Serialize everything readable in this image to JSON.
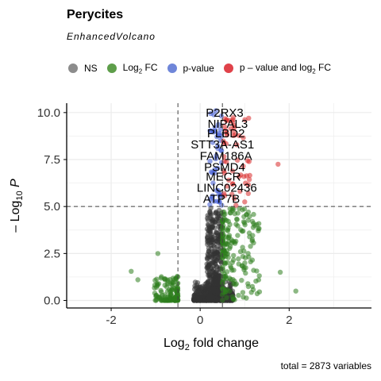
{
  "chart_data": {
    "type": "scatter",
    "title": "Perycites",
    "subtitle": "EnhancedVolcano",
    "xlabel_main": "Log",
    "xlabel_sub": "2",
    "xlabel_tail": " fold change",
    "ylabel_prefix": "– Log",
    "ylabel_sub": "10",
    "ylabel_tail": " P",
    "caption": "total = 2873 variables",
    "xlim": [
      -3,
      3.85
    ],
    "ylim": [
      -0.4,
      10.5
    ],
    "x_ticks": [
      -2,
      0,
      2
    ],
    "x_tick_labels": [
      "-2",
      "0",
      "2"
    ],
    "y_ticks": [
      0,
      2.5,
      5,
      7.5,
      10
    ],
    "y_tick_labels": [
      "0.0",
      "2.5",
      "5.0",
      "7.5",
      "10.0"
    ],
    "fc_cutoff": 0.5,
    "p_cutoff": 5,
    "grid": true,
    "legend_position": "top",
    "legend": [
      {
        "label": "NS",
        "color": "#8c8c8c"
      },
      {
        "label_main": "Log",
        "label_sub": "2",
        "label_tail": " FC",
        "color": "#5e9e4a"
      },
      {
        "label": "p-value",
        "color": "#6f86d9"
      },
      {
        "label": "p – value and log",
        "label_sub": "2",
        "label_tail": " FC",
        "color": "#e0424a"
      }
    ],
    "colors": {
      "ns": "#333333",
      "fc": "#2e7d1e",
      "p": "#3a56d1",
      "both": "#d92a2a"
    },
    "labeled_points": [
      {
        "label": "P2RX3",
        "x": 0.55,
        "y": 10.0
      },
      {
        "label": "NIPAL3",
        "x": 0.62,
        "y": 9.4
      },
      {
        "label": "PLBD2",
        "x": 0.58,
        "y": 8.9
      },
      {
        "label": "STT3A-AS1",
        "x": 0.5,
        "y": 8.3
      },
      {
        "label": "FAM186A",
        "x": 0.58,
        "y": 7.7
      },
      {
        "label": "PSMD4",
        "x": 0.55,
        "y": 7.1
      },
      {
        "label": "MECR",
        "x": 0.52,
        "y": 6.6
      },
      {
        "label": "LINC02436",
        "x": 0.6,
        "y": 6.0
      },
      {
        "label": "ATP7B",
        "x": 0.48,
        "y": 5.4
      }
    ],
    "outliers": [
      {
        "x": 1.75,
        "y": 7.25,
        "group": "both"
      },
      {
        "x": 2.15,
        "y": 0.5,
        "group": "fc"
      },
      {
        "x": 1.8,
        "y": 1.5,
        "group": "fc"
      },
      {
        "x": -0.95,
        "y": 2.5,
        "group": "fc"
      },
      {
        "x": -1.55,
        "y": 1.55,
        "group": "fc"
      },
      {
        "x": -1.4,
        "y": 1.1,
        "group": "fc"
      },
      {
        "x": 1.2,
        "y": 4.1,
        "group": "fc"
      },
      {
        "x": 0.35,
        "y": 10.1,
        "group": "p"
      }
    ]
  }
}
